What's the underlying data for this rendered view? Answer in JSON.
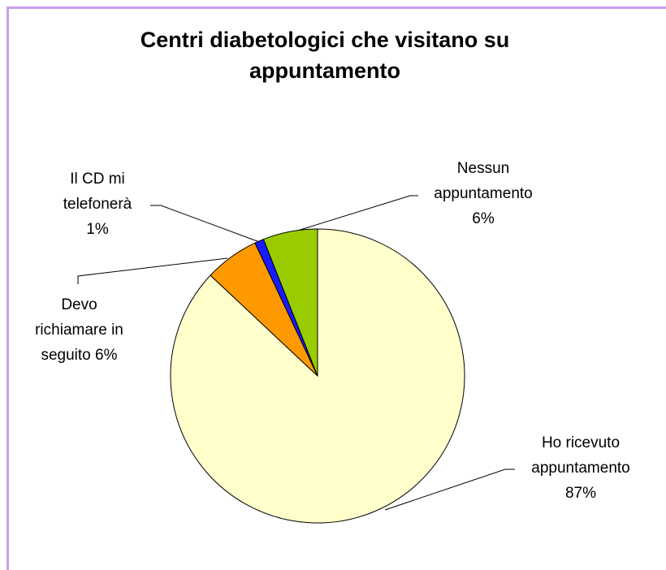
{
  "chart_data": {
    "type": "pie",
    "title": "Centri diabetologici che visitano su appuntamento",
    "categories": [
      "Ho ricevuto appuntamento",
      "Devo richiamare in seguito",
      "Il CD mi telefonerà",
      "Nessun appuntamento"
    ],
    "values": [
      87,
      6,
      1,
      6
    ],
    "value_labels": [
      "87%",
      "6%",
      "1%",
      "6%"
    ],
    "colors": [
      "#ffffcc",
      "#ff9900",
      "#1a1aff",
      "#99cc00"
    ]
  }
}
